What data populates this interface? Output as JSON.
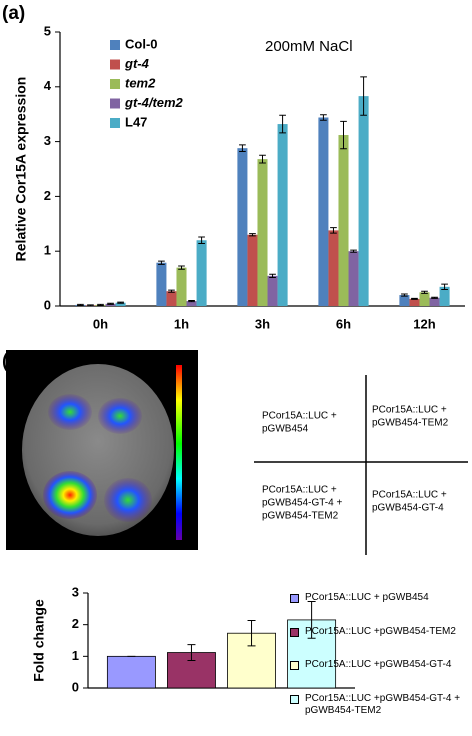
{
  "panel_labels": [
    "(a)",
    "(b)"
  ],
  "chart_data": [
    {
      "type": "bar",
      "annotation": "200mM NaCl",
      "y_label": "Relative Cor15A expression",
      "categories": [
        "0h",
        "1h",
        "3h",
        "6h",
        "12h"
      ],
      "ylim": [
        0,
        5
      ],
      "yticks": [
        0,
        1,
        2,
        3,
        4,
        5
      ],
      "grid": false,
      "legend": "upper left",
      "series": [
        {
          "name": "Col-0",
          "color": "#4f81bd",
          "values": [
            0.02,
            0.79,
            2.88,
            3.44,
            0.2
          ],
          "errors": [
            0.01,
            0.03,
            0.06,
            0.05,
            0.02
          ]
        },
        {
          "name": "gt-4",
          "color": "#c0504d",
          "values": [
            0.01,
            0.27,
            1.3,
            1.38,
            0.13
          ],
          "errors": [
            0.01,
            0.02,
            0.02,
            0.05,
            0.01
          ]
        },
        {
          "name": "tem2",
          "color": "#9bbb59",
          "values": [
            0.02,
            0.7,
            2.68,
            3.12,
            0.25
          ],
          "errors": [
            0.01,
            0.03,
            0.07,
            0.25,
            0.02
          ]
        },
        {
          "name": "gt-4/tem2",
          "color": "#8064a2",
          "values": [
            0.04,
            0.09,
            0.55,
            1.0,
            0.15
          ],
          "errors": [
            0.01,
            0.01,
            0.03,
            0.02,
            0.01
          ]
        },
        {
          "name": "L47",
          "color": "#4bacc6",
          "values": [
            0.06,
            1.2,
            3.32,
            3.83,
            0.35
          ],
          "errors": [
            0.01,
            0.06,
            0.16,
            0.35,
            0.05
          ]
        }
      ]
    },
    {
      "type": "bar",
      "y_label": "Fold change",
      "categories": [
        null
      ],
      "ylim": [
        0,
        3
      ],
      "yticks": [
        0,
        1,
        2,
        3
      ],
      "grid": false,
      "legend": "right",
      "edgecolor": "#000000",
      "series": [
        {
          "name": "PCor15A::LUC + pGWB454",
          "color": "#9999ff",
          "values": [
            1.0
          ],
          "errors": [
            0
          ]
        },
        {
          "name": "PCor15A::LUC +pGWB454-TEM2",
          "color": "#993366",
          "values": [
            1.12
          ],
          "errors": [
            0.25
          ]
        },
        {
          "name": "PCor15A::LUC +pGWB454-GT-4",
          "color": "#ffffcc",
          "values": [
            1.73
          ],
          "errors": [
            0.4
          ]
        },
        {
          "name": "PCor15A::LUC +pGWB454-GT-4 + pGWB454-TEM2",
          "color": "#ccffff",
          "values": [
            2.15
          ],
          "errors": [
            0.58
          ]
        }
      ]
    }
  ],
  "diagram": {
    "quadrants": [
      [
        "PCor15A::LUC +",
        "pGWB454"
      ],
      [
        "PCor15A::LUC +",
        "pGWB454-TEM2"
      ],
      [
        "PCor15A::LUC +",
        "pGWB454-GT-4 +",
        "pGWB454-TEM2"
      ],
      [
        "PCor15A::LUC +",
        "pGWB454-GT-4"
      ]
    ]
  }
}
